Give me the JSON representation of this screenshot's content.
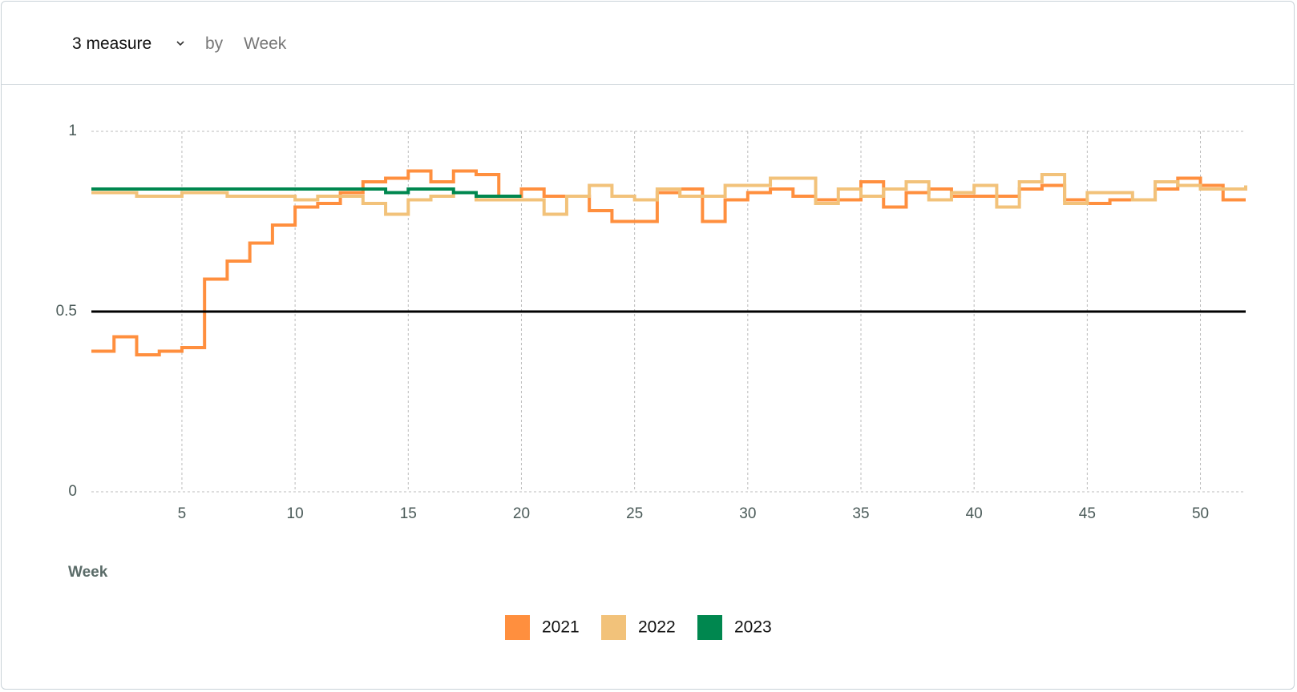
{
  "controls": {
    "measure": "3 measure",
    "by": "by",
    "dimension": "Week"
  },
  "chart_data": {
    "type": "step-line",
    "x_label": "Week",
    "x": [
      1,
      2,
      3,
      4,
      5,
      6,
      7,
      8,
      9,
      10,
      11,
      12,
      13,
      14,
      15,
      16,
      17,
      18,
      19,
      20,
      21,
      22,
      23,
      24,
      25,
      26,
      27,
      28,
      29,
      30,
      31,
      32,
      33,
      34,
      35,
      36,
      37,
      38,
      39,
      40,
      41,
      42,
      43,
      44,
      45,
      46,
      47,
      48,
      49,
      50,
      51,
      52
    ],
    "xlim": [
      1,
      52
    ],
    "xticks": [
      5,
      10,
      15,
      20,
      25,
      30,
      35,
      40,
      45,
      50
    ],
    "ylim": [
      0,
      1
    ],
    "yticks": [
      0,
      0.5,
      1
    ],
    "grid": true,
    "reference_line": 0.5,
    "series": [
      {
        "name": "2021",
        "color": "#ff8f3e",
        "values": [
          0.39,
          0.43,
          0.38,
          0.39,
          0.4,
          0.59,
          0.64,
          0.69,
          0.74,
          0.79,
          0.8,
          0.83,
          0.86,
          0.87,
          0.89,
          0.86,
          0.89,
          0.88,
          0.82,
          0.84,
          0.82,
          0.82,
          0.78,
          0.75,
          0.75,
          0.83,
          0.84,
          0.75,
          0.81,
          0.83,
          0.84,
          0.82,
          0.81,
          0.81,
          0.86,
          0.79,
          0.83,
          0.84,
          0.82,
          0.82,
          0.82,
          0.84,
          0.85,
          0.81,
          0.8,
          0.81,
          0.81,
          0.84,
          0.87,
          0.85,
          0.81,
          0.81
        ]
      },
      {
        "name": "2022",
        "color": "#f2c27a",
        "values": [
          0.83,
          0.83,
          0.82,
          0.82,
          0.83,
          0.83,
          0.82,
          0.82,
          0.82,
          0.81,
          0.82,
          0.82,
          0.8,
          0.77,
          0.81,
          0.82,
          0.83,
          0.81,
          0.81,
          0.81,
          0.77,
          0.82,
          0.85,
          0.82,
          0.81,
          0.84,
          0.82,
          0.82,
          0.85,
          0.85,
          0.87,
          0.87,
          0.8,
          0.84,
          0.82,
          0.84,
          0.86,
          0.81,
          0.83,
          0.85,
          0.79,
          0.86,
          0.88,
          0.8,
          0.83,
          0.83,
          0.81,
          0.86,
          0.85,
          0.84,
          0.84,
          0.85
        ]
      },
      {
        "name": "2023",
        "color": "#00874f",
        "values": [
          0.84,
          0.84,
          0.84,
          0.84,
          0.84,
          0.84,
          0.84,
          0.84,
          0.84,
          0.84,
          0.84,
          0.84,
          0.84,
          0.83,
          0.84,
          0.84,
          0.83,
          0.82,
          0.82,
          0.82,
          null,
          null,
          null,
          null,
          null,
          null,
          null,
          null,
          null,
          null,
          null,
          null,
          null,
          null,
          null,
          null,
          null,
          null,
          null,
          null,
          null,
          null,
          null,
          null,
          null,
          null,
          null,
          null,
          null,
          null,
          null,
          null
        ]
      }
    ]
  }
}
